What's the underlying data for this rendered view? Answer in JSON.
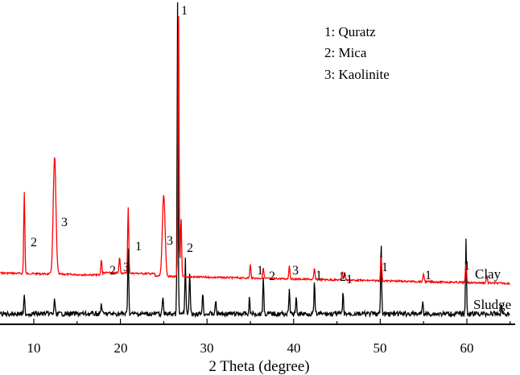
{
  "chart_data": {
    "type": "line",
    "title": "",
    "xlabel": "2 Theta (degree)",
    "ylabel": "",
    "xlim": [
      5,
      65
    ],
    "xticks": [
      10,
      20,
      30,
      40,
      50,
      60
    ],
    "grid": false,
    "legend": {
      "position": "upper right",
      "entries": [
        "1: Quratz",
        "2: Mica",
        "3: Kaolinite"
      ]
    },
    "series": [
      {
        "name": "Clay",
        "color": "#ff0000",
        "baseline_label": "Clay",
        "peaks": [
          {
            "two_theta": 8.9,
            "height": 0.3,
            "phase": "2"
          },
          {
            "two_theta": 12.4,
            "height": 0.43,
            "phase": "3"
          },
          {
            "two_theta": 17.8,
            "height": 0.06,
            "phase": "2"
          },
          {
            "two_theta": 19.9,
            "height": 0.06,
            "phase": "3"
          },
          {
            "two_theta": 20.9,
            "height": 0.24,
            "phase": "1"
          },
          {
            "two_theta": 25.0,
            "height": 0.3,
            "phase": "3"
          },
          {
            "two_theta": 26.7,
            "height": 1.0,
            "phase": "1"
          },
          {
            "two_theta": 27.0,
            "height": 0.22,
            "phase": "2"
          },
          {
            "two_theta": 35.0,
            "height": 0.05,
            "phase": "1"
          },
          {
            "two_theta": 36.5,
            "height": 0.04,
            "phase": "2"
          },
          {
            "two_theta": 39.5,
            "height": 0.05,
            "phase": "3"
          },
          {
            "two_theta": 42.4,
            "height": 0.04,
            "phase": "1"
          },
          {
            "two_theta": 45.6,
            "height": 0.03,
            "phase": "2"
          },
          {
            "two_theta": 45.9,
            "height": 0.03,
            "phase": "1"
          },
          {
            "two_theta": 50.1,
            "height": 0.09,
            "phase": "1"
          },
          {
            "two_theta": 55.0,
            "height": 0.03,
            "phase": "1"
          },
          {
            "two_theta": 59.9,
            "height": 0.07,
            "phase": "1"
          },
          {
            "two_theta": 62.3,
            "height": 0.03,
            "phase": ""
          }
        ]
      },
      {
        "name": "Sludge",
        "color": "#000000",
        "baseline_label": "Sludge",
        "peaks": [
          {
            "two_theta": 8.9,
            "height": 0.08
          },
          {
            "two_theta": 12.4,
            "height": 0.07
          },
          {
            "two_theta": 17.8,
            "height": 0.05
          },
          {
            "two_theta": 20.9,
            "height": 0.3
          },
          {
            "two_theta": 24.9,
            "height": 0.08
          },
          {
            "two_theta": 26.6,
            "height": 1.4
          },
          {
            "two_theta": 27.5,
            "height": 0.25
          },
          {
            "two_theta": 28.0,
            "height": 0.2
          },
          {
            "two_theta": 29.5,
            "height": 0.1
          },
          {
            "two_theta": 31.0,
            "height": 0.06
          },
          {
            "two_theta": 34.9,
            "height": 0.07
          },
          {
            "two_theta": 36.5,
            "height": 0.17
          },
          {
            "two_theta": 39.5,
            "height": 0.11
          },
          {
            "two_theta": 40.3,
            "height": 0.07
          },
          {
            "two_theta": 42.4,
            "height": 0.14
          },
          {
            "two_theta": 45.7,
            "height": 0.09
          },
          {
            "two_theta": 50.1,
            "height": 0.32
          },
          {
            "two_theta": 54.9,
            "height": 0.06
          },
          {
            "two_theta": 59.9,
            "height": 0.33
          },
          {
            "two_theta": 64.0,
            "height": 0.04
          }
        ]
      }
    ]
  },
  "axis": {
    "x_title": "2 Theta (degree)",
    "ticks": [
      "10",
      "20",
      "30",
      "40",
      "50",
      "60"
    ]
  },
  "legend": {
    "line1": "1: Quratz",
    "line2": "2: Mica",
    "line3": "3: Kaolinite"
  },
  "labels": {
    "clay": "Clay",
    "sludge": "Sludge"
  }
}
